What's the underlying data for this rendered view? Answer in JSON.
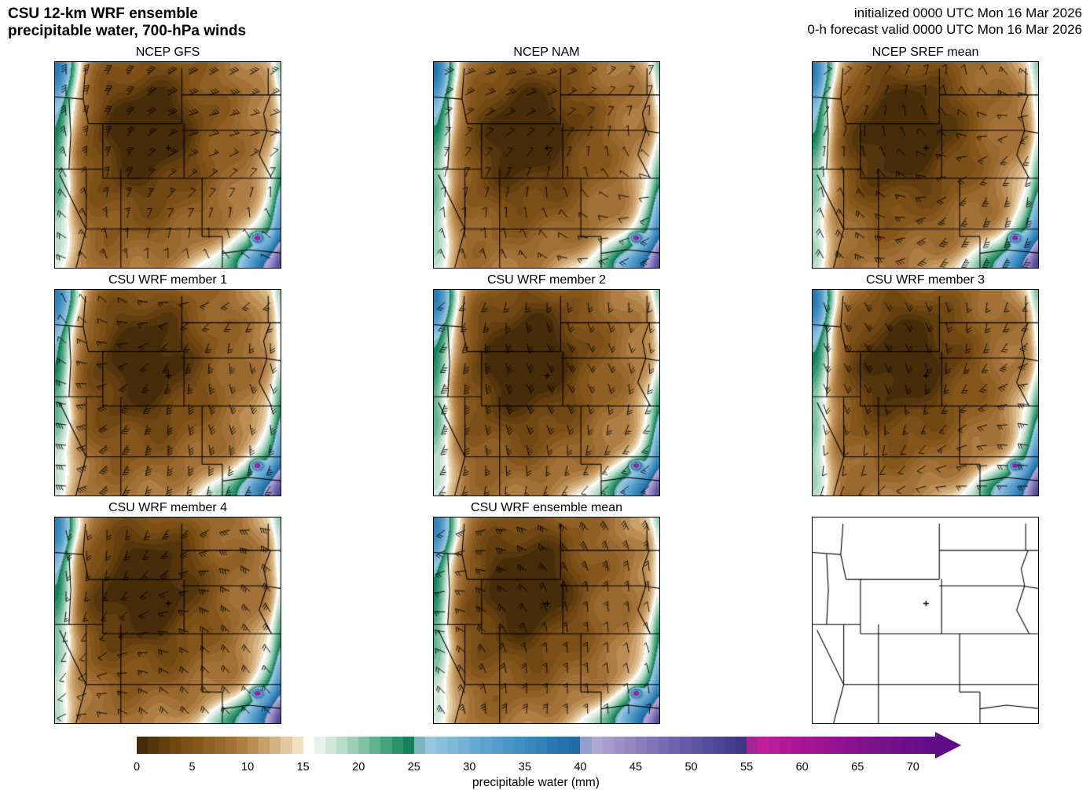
{
  "header": {
    "title_line1": "CSU 12-km WRF ensemble",
    "title_line2": "precipitable water, 700-hPa winds",
    "init_line": "initialized 0000 UTC Mon 16 Mar 2026",
    "valid_line": "0-h forecast valid 0000 UTC Mon 16 Mar 2026"
  },
  "panels": [
    {
      "title": "NCEP GFS",
      "style": "filled"
    },
    {
      "title": "NCEP NAM",
      "style": "filled"
    },
    {
      "title": "NCEP SREF mean",
      "style": "filled"
    },
    {
      "title": "CSU WRF member 1",
      "style": "filled"
    },
    {
      "title": "CSU WRF member 2",
      "style": "filled"
    },
    {
      "title": "CSU WRF member 3",
      "style": "filled"
    },
    {
      "title": "CSU WRF member 4",
      "style": "filled"
    },
    {
      "title": "CSU WRF ensemble mean",
      "style": "filled"
    },
    {
      "title": "",
      "style": "outline"
    }
  ],
  "colorbar": {
    "label": "precipitable water (mm)",
    "tick_labels": [
      "0",
      "5",
      "10",
      "15",
      "20",
      "25",
      "30",
      "35",
      "40",
      "45",
      "50",
      "55",
      "60",
      "65",
      "70"
    ],
    "tick_step_mm": 5,
    "min_mm": 0,
    "max_mm": 72,
    "stops": [
      {
        "mm": 0,
        "color": "#3e2708"
      },
      {
        "mm": 3,
        "color": "#6b430f"
      },
      {
        "mm": 6,
        "color": "#8a5a1e"
      },
      {
        "mm": 9,
        "color": "#a8763c"
      },
      {
        "mm": 11,
        "color": "#c2965e"
      },
      {
        "mm": 13,
        "color": "#dcbd8e"
      },
      {
        "mm": 14.5,
        "color": "#f1e1c2"
      },
      {
        "mm": 15.5,
        "color": "#ffffff"
      },
      {
        "mm": 16.5,
        "color": "#e8f2ec"
      },
      {
        "mm": 18,
        "color": "#c8e3d3"
      },
      {
        "mm": 19.5,
        "color": "#9ed0b6"
      },
      {
        "mm": 21,
        "color": "#70ba98"
      },
      {
        "mm": 22.5,
        "color": "#45a27c"
      },
      {
        "mm": 24,
        "color": "#1e8a63"
      },
      {
        "mm": 25.2,
        "color": "#0b6f4f"
      },
      {
        "mm": 25.6,
        "color": "#a2cce3"
      },
      {
        "mm": 28,
        "color": "#86bbdc"
      },
      {
        "mm": 31,
        "color": "#63a6d0"
      },
      {
        "mm": 34,
        "color": "#4692c3"
      },
      {
        "mm": 37,
        "color": "#2e7db4"
      },
      {
        "mm": 40.2,
        "color": "#1b66a0"
      },
      {
        "mm": 40.6,
        "color": "#bab1d9"
      },
      {
        "mm": 43,
        "color": "#a196cb"
      },
      {
        "mm": 46,
        "color": "#8579ba"
      },
      {
        "mm": 49,
        "color": "#6a5ea9"
      },
      {
        "mm": 52,
        "color": "#514795"
      },
      {
        "mm": 55.2,
        "color": "#3a3183"
      },
      {
        "mm": 55.6,
        "color": "#c9209a"
      },
      {
        "mm": 59,
        "color": "#b01793"
      },
      {
        "mm": 63,
        "color": "#931290"
      },
      {
        "mm": 67,
        "color": "#77108c"
      },
      {
        "mm": 72,
        "color": "#5e0d86"
      }
    ]
  },
  "map": {
    "marker_symbol": "+",
    "border_color": "#000000",
    "barb_color": "#000000"
  },
  "chart_data": {
    "type": "heatmap",
    "title": "CSU 12-km WRF ensemble precipitable water, 700-hPa winds",
    "subtitle_init": "initialized 0000 UTC Mon 16 Mar 2026",
    "subtitle_valid": "0-h forecast valid 0000 UTC Mon 16 Mar 2026",
    "panels": [
      "NCEP GFS",
      "NCEP NAM",
      "NCEP SREF mean",
      "CSU WRF member 1",
      "CSU WRF member 2",
      "CSU WRF member 3",
      "CSU WRF member 4",
      "CSU WRF ensemble mean"
    ],
    "colorbar_label": "precipitable water (mm)",
    "colorbar_ticks": [
      0,
      5,
      10,
      15,
      20,
      25,
      30,
      35,
      40,
      45,
      50,
      55,
      60,
      65,
      70
    ],
    "value_range_mm": [
      0,
      72
    ],
    "legend_position": "bottom",
    "notes_visible_features": "dry (brown) interior over Rockies, moist (green/blue) bands along Pacific coast and Gulf-side southeast corner; 700-hPa wind barbs overlaid"
  }
}
